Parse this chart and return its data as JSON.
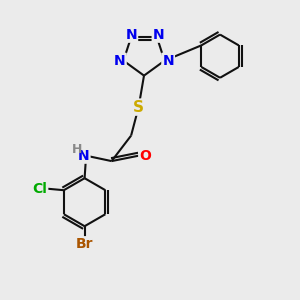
{
  "bg_color": "#ebebeb",
  "atom_colors": {
    "N": "#0000ee",
    "S": "#ccaa00",
    "O": "#ff0000",
    "C": "#000000",
    "H": "#888888",
    "Cl": "#00aa00",
    "Br": "#aa5500"
  },
  "font_size": 10,
  "bond_color": "#111111",
  "bond_width": 1.5
}
